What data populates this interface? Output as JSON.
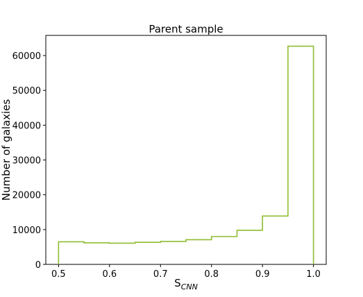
{
  "chart_data": {
    "type": "bar",
    "histogram": true,
    "title": "Parent sample",
    "xlabel_main": "S",
    "xlabel_sub": "CNN",
    "ylabel": "Number of galaxies",
    "bin_edges": [
      0.5,
      0.55,
      0.6,
      0.65,
      0.7,
      0.75,
      0.8,
      0.85,
      0.9,
      0.95,
      1.0
    ],
    "values": [
      6500,
      6200,
      6100,
      6350,
      6600,
      7100,
      8000,
      9800,
      13900,
      62700
    ],
    "xlim": [
      0.475,
      1.025
    ],
    "ylim": [
      0,
      65800
    ],
    "xticks": [
      0.5,
      0.6,
      0.7,
      0.8,
      0.9,
      1.0
    ],
    "xtick_labels": [
      "0.5",
      "0.6",
      "0.7",
      "0.8",
      "0.9",
      "1.0"
    ],
    "yticks": [
      0,
      10000,
      20000,
      30000,
      40000,
      50000,
      60000
    ],
    "ytick_labels": [
      "0",
      "10000",
      "20000",
      "30000",
      "40000",
      "50000",
      "60000"
    ],
    "line_color": "#8fbc2f",
    "grid": false
  }
}
